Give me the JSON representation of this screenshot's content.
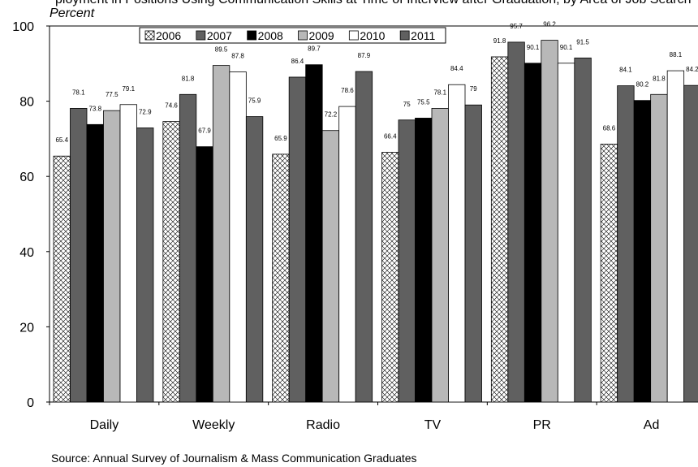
{
  "caption": "ployment in Positions Using Communication Skills at Time of Interview after Graduation, by Area of Job Search",
  "source": "Source:  Annual Survey of Journalism & Mass Communication Graduates",
  "colors": {
    "2006": "hatched",
    "2007": "#606060",
    "2008": "#000000",
    "2009": "#b8b8b8",
    "2010": "#ffffff",
    "2011": "#606060"
  },
  "chart_data": {
    "type": "bar",
    "ylabel": "Percent",
    "xlabel": "",
    "ylim": [
      0,
      100
    ],
    "yticks": [
      0,
      20,
      40,
      60,
      80,
      100
    ],
    "grid": false,
    "legend_position": "top",
    "categories": [
      "Daily",
      "Weekly",
      "Radio",
      "TV",
      "PR",
      "Ad"
    ],
    "series": [
      {
        "name": "2006",
        "values": [
          65.4,
          74.6,
          65.9,
          66.4,
          91.8,
          68.6
        ]
      },
      {
        "name": "2007",
        "values": [
          78.1,
          81.8,
          86.4,
          75,
          95.7,
          84.1
        ]
      },
      {
        "name": "2008",
        "values": [
          73.8,
          67.9,
          89.7,
          75.5,
          90.1,
          80.2
        ]
      },
      {
        "name": "2009",
        "values": [
          77.5,
          89.5,
          72.2,
          78.1,
          96.2,
          81.8
        ]
      },
      {
        "name": "2010",
        "values": [
          79.1,
          87.8,
          78.6,
          84.4,
          90.1,
          88.1
        ]
      },
      {
        "name": "2011",
        "values": [
          72.9,
          75.9,
          87.9,
          79,
          91.5,
          84.2
        ]
      }
    ]
  }
}
